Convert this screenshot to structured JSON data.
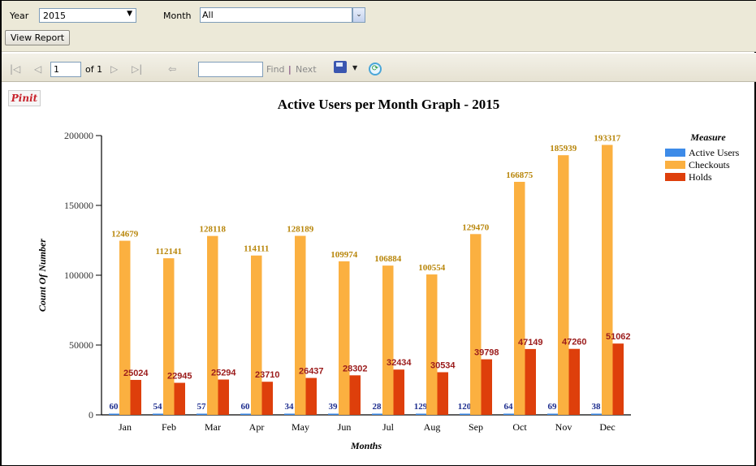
{
  "params": {
    "year_label": "Year",
    "year_value": "2015",
    "month_label": "Month",
    "month_value": "All",
    "view_report": "View Report"
  },
  "toolbar": {
    "first_page": "first-page-icon",
    "prev_page": "previous-page-icon",
    "page_value": "1",
    "of_pages": "of 1",
    "next_page": "next-page-icon",
    "last_page": "last-page-icon",
    "back": "back-icon",
    "find_placeholder": "",
    "find_label": "Find",
    "separator": "|",
    "next_label": "Next",
    "export": "save-export-icon",
    "refresh": "refresh-icon"
  },
  "pin_it": "Pinit",
  "chart_data": {
    "type": "bar",
    "title": "Active Users per Month Graph -  2015",
    "xlabel": "Months",
    "ylabel": "Count Of Number",
    "ylim": [
      0,
      200000
    ],
    "yticks": [
      "0",
      "50000",
      "100000",
      "150000",
      "200000"
    ],
    "grid": false,
    "legend_title": "Measure",
    "legend_position": "right",
    "categories": [
      "Jan",
      "Feb",
      "Mar",
      "Apr",
      "May",
      "Jun",
      "Jul",
      "Aug",
      "Sep",
      "Oct",
      "Nov",
      "Dec"
    ],
    "series": [
      {
        "name": "Active Users",
        "color": "#3d8be8",
        "label_color": "#1f2f8f",
        "values": [
          60,
          54,
          57,
          60,
          34,
          39,
          28,
          129,
          120,
          64,
          69,
          38
        ]
      },
      {
        "name": "Checkouts",
        "color": "#fbb040",
        "label_color": "#b8860b",
        "values": [
          124679,
          112141,
          128118,
          114111,
          128189,
          109974,
          106884,
          100554,
          129470,
          166875,
          185939,
          193317
        ]
      },
      {
        "name": "Holds",
        "color": "#de3f0b",
        "label_color": "#9b1b1b",
        "values": [
          25024,
          22945,
          25294,
          23710,
          26437,
          28302,
          32434,
          30534,
          39798,
          47149,
          47260,
          51062
        ]
      }
    ]
  }
}
